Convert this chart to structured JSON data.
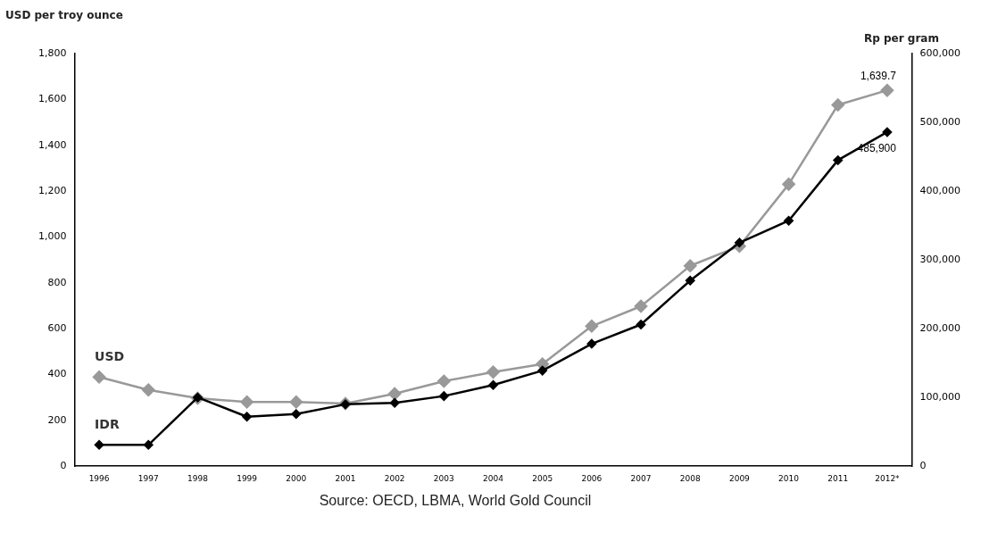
{
  "chart_data": {
    "type": "line",
    "ylabel": "USD per troy ounce",
    "y2label": "Rp per gram",
    "categories": [
      "1996",
      "1997",
      "1998",
      "1999",
      "2000",
      "2001",
      "2002",
      "2003",
      "2004",
      "2005",
      "2006",
      "2007",
      "2008",
      "2009",
      "2010",
      "2011",
      "2012*"
    ],
    "series": [
      {
        "name": "USD",
        "color": "#999999",
        "values": [
          389,
          333,
          297,
          280,
          280,
          273,
          316,
          371,
          411,
          446,
          611,
          698,
          874,
          960,
          1230,
          1576,
          1639.7
        ],
        "value_labels": [
          null,
          null,
          null,
          null,
          null,
          null,
          null,
          null,
          null,
          null,
          null,
          null,
          null,
          null,
          null,
          null,
          "1,639.7"
        ]
      },
      {
        "name": "IDR",
        "color": "#000000",
        "axis": "y2",
        "values": [
          31000,
          31000,
          100000,
          72000,
          76000,
          90000,
          92000,
          102000,
          118000,
          139000,
          178000,
          206000,
          270000,
          325000,
          357000,
          445000,
          485900
        ],
        "value_labels": [
          null,
          null,
          null,
          null,
          null,
          null,
          null,
          null,
          null,
          null,
          null,
          null,
          null,
          null,
          null,
          null,
          "485,900"
        ]
      }
    ],
    "ylim": [
      0,
      1800
    ],
    "yticks": [
      {
        "value": 0,
        "label": "0"
      },
      {
        "value": 200,
        "label": "200"
      },
      {
        "value": 400,
        "label": "400"
      },
      {
        "value": 600,
        "label": "600"
      },
      {
        "value": 800,
        "label": "800"
      },
      {
        "value": 1000,
        "label": "1,000"
      },
      {
        "value": 1200,
        "label": "1,200"
      },
      {
        "value": 1400,
        "label": "1,400"
      },
      {
        "value": 1600,
        "label": "1,600"
      },
      {
        "value": 1800,
        "label": "1,800"
      }
    ],
    "y2lim": [
      0,
      600000
    ],
    "y2ticks": [
      {
        "value": 0,
        "label": "0"
      },
      {
        "value": 100000,
        "label": "100,000"
      },
      {
        "value": 200000,
        "label": "200,000"
      },
      {
        "value": 300000,
        "label": "300,000"
      },
      {
        "value": 400000,
        "label": "400,000"
      },
      {
        "value": 500000,
        "label": "500,000"
      },
      {
        "value": 600000,
        "label": "600,000"
      }
    ],
    "annotations": [
      "Source: OECD, LBMA, World Gold Council"
    ],
    "grid": false,
    "legend": false,
    "marker": "diamond",
    "line_style": "solid"
  }
}
